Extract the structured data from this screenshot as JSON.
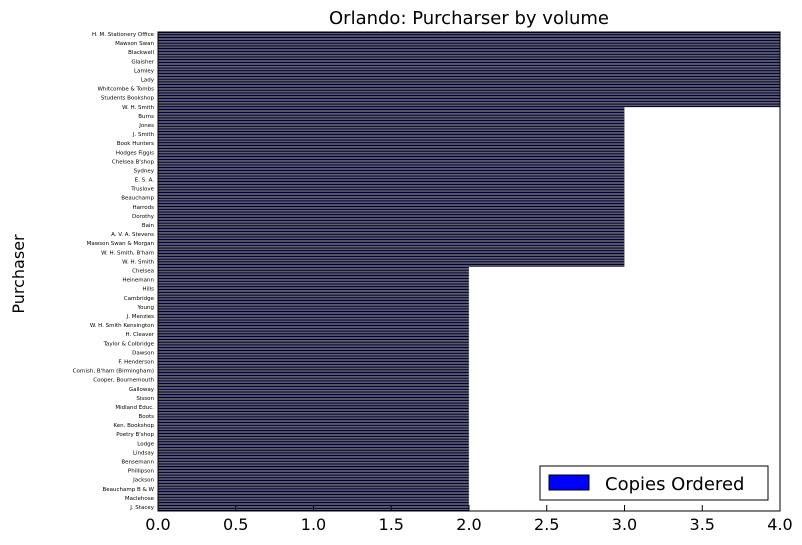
{
  "chart_data": {
    "type": "bar",
    "orientation": "horizontal",
    "title": "Orlando: Purcharser by volume",
    "ylabel": "Purchaser",
    "xlabel": "",
    "xlim": [
      0,
      4
    ],
    "xticks": [
      "0.0",
      "0.5",
      "1.0",
      "1.5",
      "2.0",
      "2.5",
      "3.0",
      "3.5",
      "4.0"
    ],
    "legend": {
      "label": "Copies Ordered",
      "position": "lower-right"
    },
    "grid": false,
    "series_color": "#0000ff",
    "bar_fill": "#00003a",
    "series": [
      {
        "name": "Copies Ordered",
        "values": [
          4,
          4,
          4,
          4,
          4,
          4,
          4,
          4,
          4,
          4,
          4,
          4,
          4,
          4,
          4,
          4,
          4,
          4,
          4,
          4,
          4,
          4,
          4,
          4,
          4,
          4,
          4,
          4,
          4,
          4,
          4,
          4,
          4,
          4,
          4,
          4,
          4,
          4,
          4,
          4,
          4,
          4,
          4,
          4,
          4,
          4,
          4,
          4,
          3,
          3,
          3,
          3,
          3,
          3,
          3,
          3,
          3,
          3,
          3,
          3,
          3,
          3,
          3,
          3,
          3,
          3,
          3,
          3,
          3,
          3,
          3,
          3,
          3,
          3,
          3,
          3,
          3,
          3,
          3,
          3,
          3,
          3,
          3,
          3,
          3,
          3,
          3,
          3,
          3,
          3,
          3,
          3,
          3,
          3,
          3,
          3,
          3,
          3,
          3,
          3,
          3,
          3,
          3,
          3,
          3,
          3,
          3,
          3,
          3,
          3,
          3,
          3,
          3,
          3,
          3,
          3,
          3,
          3,
          3,
          3,
          3,
          3,
          3,
          3,
          3,
          3,
          3,
          3,
          3,
          3,
          3,
          3,
          3,
          3,
          3,
          3,
          3,
          3,
          3,
          3,
          3,
          3,
          3,
          3,
          3,
          3,
          3,
          3,
          3,
          3,
          2,
          2,
          2,
          2,
          2,
          2,
          2,
          2,
          2,
          2,
          2,
          2,
          2,
          2,
          2,
          2,
          2,
          2,
          2,
          2,
          2,
          2,
          2,
          2,
          2,
          2,
          2,
          2,
          2,
          2,
          2,
          2,
          2,
          2,
          2,
          2,
          2,
          2,
          2,
          2,
          2,
          2,
          2,
          2,
          2,
          2,
          2,
          2,
          2,
          2,
          2,
          2,
          2,
          2,
          2,
          2,
          2,
          2,
          2,
          2,
          2,
          2,
          2,
          2,
          2,
          2,
          2,
          2,
          2,
          2,
          2,
          2,
          2,
          2,
          2,
          2,
          2,
          2,
          2,
          2,
          2,
          2,
          2,
          2,
          2,
          2,
          2,
          2,
          2,
          2,
          2,
          2,
          2,
          2,
          2,
          2,
          2,
          2,
          2,
          2,
          2,
          2,
          2,
          2,
          2,
          2,
          2,
          2,
          2,
          2,
          2,
          2,
          2,
          2,
          2,
          2,
          2,
          2,
          2,
          2,
          2,
          2,
          2,
          2,
          2,
          2,
          2,
          2,
          2,
          2,
          2,
          2,
          2,
          2,
          2,
          2,
          2,
          2,
          2,
          2,
          2,
          2,
          2,
          2,
          2,
          2,
          2,
          2,
          2,
          2,
          2,
          2,
          2,
          2,
          2,
          2
        ]
      }
    ],
    "visible_labels": [
      "H. M. Stationery Office",
      "Mawson Swan",
      "Blackwell",
      "Glaisher",
      "Lamley",
      "Lady",
      "Whitcombe & Tombs",
      "Students Bookshop",
      "W. H. Smith",
      "Burns",
      "Jones",
      "J. Smith",
      "Book Hunters",
      "Hodges Figgis",
      "Chelsea B'shop",
      "Sydney",
      "E. S. A.",
      "Truslove",
      "Beauchamp",
      "Harrods",
      "Dorothy",
      "Bain",
      "A. V. A. Stevens",
      "Mawson Swan & Morgan",
      "W. H. Smith, B'ham",
      "W. H. Smith",
      "Chelsea",
      "Heinemann",
      "Hills",
      "Cambridge",
      "Young",
      "J. Menzies",
      "W. H. Smith Kensington",
      "H. Cleaver",
      "Taylor & Colbridge",
      "Dawson",
      "F. Henderson",
      "Cornish, B'ham (Birmingham)",
      "Cooper, Bournemouth",
      "Galloway",
      "Sisson",
      "Midland Educ.",
      "Boots",
      "Ken. Bookshop",
      "Poetry B'shop",
      "Lodge",
      "Lindsay",
      "Bensemann",
      "Phillipson",
      "Jackson",
      "Beauchamp B & W",
      "Maclehose",
      "J. Stacey"
    ]
  }
}
